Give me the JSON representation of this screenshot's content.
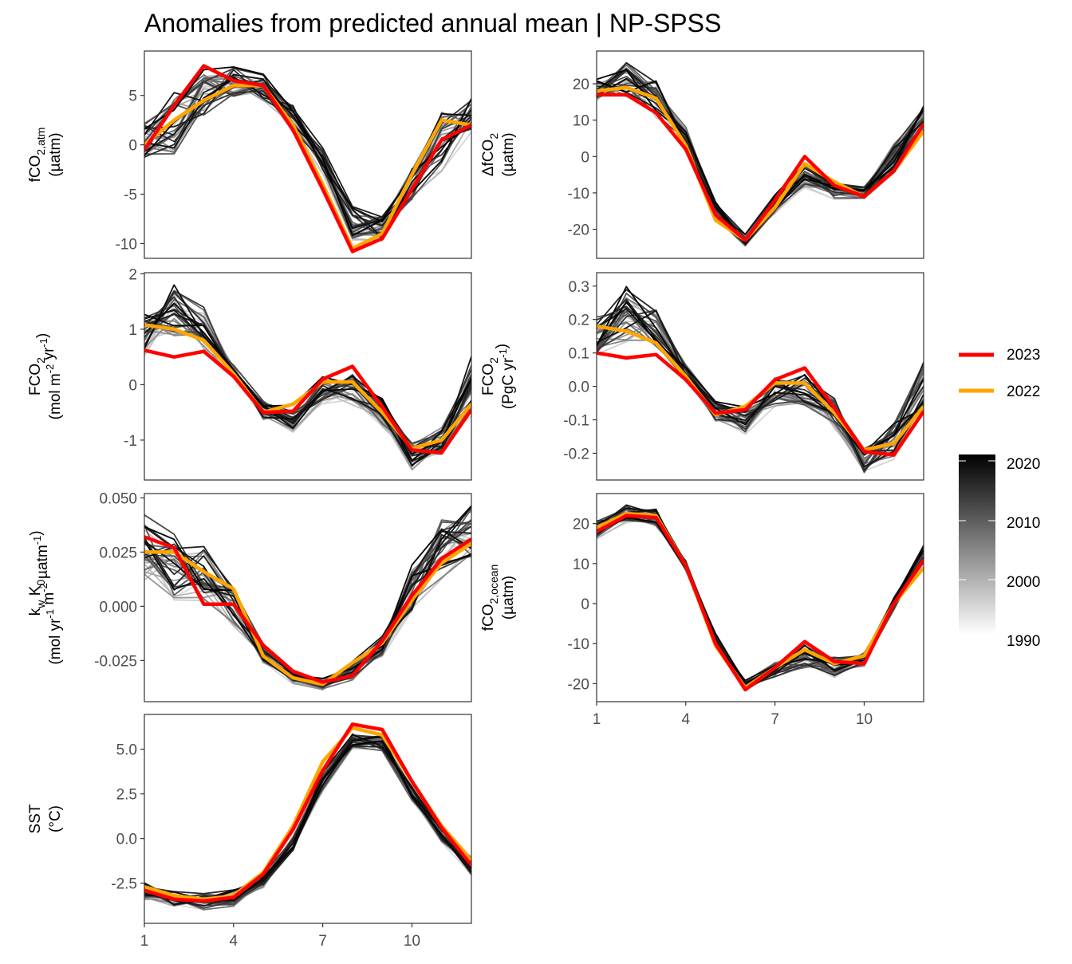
{
  "title": "Anomalies from predicted annual mean | NP-SPSS",
  "legend": {
    "series": [
      {
        "label": "2023",
        "color": "#ff0000"
      },
      {
        "label": "2022",
        "color": "#ffa500"
      }
    ],
    "colorbar": {
      "labels": [
        "2020",
        "2010",
        "2000",
        "1990"
      ],
      "from_color": "#ffffff",
      "to_color": "#000000"
    }
  },
  "chart_data": [
    {
      "type": "line",
      "panel": "fCO2,atm",
      "ylabel": {
        "main": "fCO",
        "sub": "2,atm",
        "line2": "(µatm)"
      },
      "ylim": [
        -11.5,
        9.5
      ],
      "yticks": [
        5,
        0,
        -5,
        -10
      ],
      "ytick_labels": [
        "5",
        "0",
        "-5",
        "-10"
      ],
      "x": [
        1,
        2,
        3,
        4,
        5,
        6,
        7,
        8,
        9,
        10,
        11,
        12
      ],
      "xlim": [
        1,
        12
      ],
      "years": {
        "start": 1990,
        "end": 2021
      },
      "background_envelope": {
        "low": [
          -2,
          -2,
          2,
          4,
          4,
          1,
          -3,
          -10,
          -10,
          -6,
          -3,
          1
        ],
        "high": [
          2.5,
          6,
          8,
          8.5,
          7.5,
          4.5,
          0,
          -6,
          -7,
          -2,
          4,
          5
        ]
      },
      "series": [
        {
          "name": "2023",
          "color": "#ff0000",
          "values": [
            -0.5,
            4,
            8,
            6.5,
            6,
            1.5,
            -4.5,
            -10.8,
            -9.5,
            -4.5,
            0.5,
            2
          ]
        },
        {
          "name": "2022",
          "color": "#ffa500",
          "values": [
            0,
            2.5,
            4.5,
            6,
            6,
            2,
            -4,
            -10.5,
            -9,
            -3,
            2.5,
            2
          ]
        }
      ]
    },
    {
      "type": "line",
      "panel": "ΔfCO2",
      "ylabel": {
        "main": "ΔfCO",
        "sub": "2",
        "line2": "(µatm)"
      },
      "ylim": [
        -28,
        29
      ],
      "yticks": [
        20,
        10,
        0,
        -10,
        -20
      ],
      "ytick_labels": [
        "20",
        "10",
        "0",
        "-10",
        "-20"
      ],
      "x": [
        1,
        2,
        3,
        4,
        5,
        6,
        7,
        8,
        9,
        10,
        11,
        12
      ],
      "xlim": [
        1,
        12
      ],
      "years": {
        "start": 1990,
        "end": 2021
      },
      "background_envelope": {
        "low": [
          15,
          15,
          10,
          1,
          -18,
          -25,
          -16,
          -9,
          -12,
          -12,
          -5,
          5
        ],
        "high": [
          22,
          27,
          22,
          9,
          -12,
          -21,
          -10,
          -1,
          -7,
          -8,
          5,
          16
        ]
      },
      "series": [
        {
          "name": "2023",
          "color": "#ff0000",
          "values": [
            17,
            17,
            12,
            2,
            -16,
            -23,
            -12,
            0,
            -8,
            -11,
            -4,
            9
          ]
        },
        {
          "name": "2022",
          "color": "#ffa500",
          "values": [
            18,
            19,
            16,
            3,
            -17.5,
            -23,
            -14,
            -2,
            -7,
            -11,
            -4,
            7
          ]
        }
      ]
    },
    {
      "type": "line",
      "panel": "FCO2",
      "ylabel": {
        "main": "FCO",
        "sub": "2",
        "line2": "(mol m-2 yr-1)"
      },
      "ylim": [
        -1.72,
        2.02
      ],
      "yticks": [
        2,
        1,
        0,
        -1
      ],
      "ytick_labels": [
        "2",
        "1",
        "0",
        "-1"
      ],
      "x": [
        1,
        2,
        3,
        4,
        5,
        6,
        7,
        8,
        9,
        10,
        11,
        12
      ],
      "xlim": [
        1,
        12
      ],
      "years": {
        "start": 1990,
        "end": 2021
      },
      "background_envelope": {
        "low": [
          0.5,
          0.8,
          0.6,
          0.1,
          -0.7,
          -0.9,
          -0.4,
          -0.4,
          -0.8,
          -1.6,
          -1.4,
          -0.6
        ],
        "high": [
          1.3,
          1.85,
          1.45,
          0.4,
          -0.25,
          -0.35,
          0.15,
          0.25,
          -0.2,
          -1.0,
          -0.6,
          0.55
        ]
      },
      "series": [
        {
          "name": "2023",
          "color": "#ff0000",
          "values": [
            0.62,
            0.5,
            0.6,
            0.15,
            -0.5,
            -0.48,
            0.1,
            0.33,
            -0.4,
            -1.18,
            -1.23,
            -0.45
          ]
        },
        {
          "name": "2022",
          "color": "#ffa500",
          "values": [
            1.08,
            1.0,
            0.8,
            0.2,
            -0.5,
            -0.35,
            0.05,
            0.05,
            -0.5,
            -1.15,
            -1.0,
            -0.35
          ]
        }
      ]
    },
    {
      "type": "line",
      "panel": "FCO2 (PgC)",
      "ylabel": {
        "main": "FCO",
        "sub": "2",
        "line2": "(PgC yr-1)"
      },
      "ylim": [
        -0.28,
        0.34
      ],
      "yticks": [
        0.3,
        0.2,
        0.1,
        0.0,
        -0.1,
        -0.2
      ],
      "ytick_labels": [
        "0.3",
        "0.2",
        "0.1",
        "0.0",
        "-0.1",
        "-0.2"
      ],
      "x": [
        1,
        2,
        3,
        4,
        5,
        6,
        7,
        8,
        9,
        10,
        11,
        12
      ],
      "xlim": [
        1,
        12
      ],
      "years": {
        "start": 1990,
        "end": 2021
      },
      "background_envelope": {
        "low": [
          0.08,
          0.12,
          0.1,
          0.01,
          -0.11,
          -0.15,
          -0.07,
          -0.07,
          -0.13,
          -0.27,
          -0.23,
          -0.1
        ],
        "high": [
          0.22,
          0.31,
          0.24,
          0.07,
          -0.04,
          -0.06,
          0.03,
          0.04,
          -0.03,
          -0.17,
          -0.1,
          0.09
        ]
      },
      "series": [
        {
          "name": "2023",
          "color": "#ff0000",
          "values": [
            0.1,
            0.085,
            0.095,
            0.02,
            -0.08,
            -0.07,
            0.02,
            0.055,
            -0.065,
            -0.195,
            -0.205,
            -0.075
          ]
        },
        {
          "name": "2022",
          "color": "#ffa500",
          "values": [
            0.18,
            0.165,
            0.13,
            0.03,
            -0.085,
            -0.06,
            0.01,
            0.01,
            -0.08,
            -0.19,
            -0.17,
            -0.06
          ]
        }
      ]
    },
    {
      "type": "line",
      "panel": "kw K0",
      "ylabel": {
        "main": "k_w K_0",
        "line2": "(mol yr-1 m-2 µatm-1)"
      },
      "ylim": [
        -0.044,
        0.052
      ],
      "yticks": [
        0.05,
        0.025,
        0.0,
        -0.025
      ],
      "ytick_labels": [
        "0.050",
        "0.025",
        "0.000",
        "-0.025"
      ],
      "x": [
        1,
        2,
        3,
        4,
        5,
        6,
        7,
        8,
        9,
        10,
        11,
        12
      ],
      "xlim": [
        1,
        12
      ],
      "years": {
        "start": 1990,
        "end": 2021
      },
      "background_envelope": {
        "low": [
          0.01,
          0.0,
          0.0,
          -0.01,
          -0.027,
          -0.036,
          -0.039,
          -0.035,
          -0.024,
          -0.006,
          0.01,
          0.018
        ],
        "high": [
          0.045,
          0.038,
          0.03,
          0.012,
          -0.016,
          -0.03,
          -0.032,
          -0.025,
          -0.013,
          0.02,
          0.043,
          0.048
        ]
      },
      "series": [
        {
          "name": "2023",
          "color": "#ff0000",
          "values": [
            0.032,
            0.027,
            0.001,
            0.001,
            -0.018,
            -0.03,
            -0.035,
            -0.032,
            -0.016,
            0.005,
            0.022,
            0.031
          ]
        },
        {
          "name": "2022",
          "color": "#ffa500",
          "values": [
            0.025,
            0.025,
            0.016,
            0.008,
            -0.023,
            -0.033,
            -0.036,
            -0.026,
            -0.017,
            0.003,
            0.02,
            0.029
          ]
        }
      ]
    },
    {
      "type": "line",
      "panel": "fCO2,ocean",
      "ylabel": {
        "main": "fCO",
        "sub": "2,ocean",
        "line2": "(µatm)"
      },
      "ylim": [
        -24.5,
        27.5
      ],
      "yticks": [
        20,
        10,
        0,
        -10,
        -20
      ],
      "ytick_labels": [
        "20",
        "10",
        "0",
        "-10",
        "-20"
      ],
      "x": [
        1,
        2,
        3,
        4,
        5,
        6,
        7,
        8,
        9,
        10,
        11,
        12
      ],
      "xlim": [
        1,
        12
      ],
      "xticks": [
        1,
        4,
        7,
        10
      ],
      "xtick_labels": [
        "1",
        "4",
        "7",
        "10"
      ],
      "years": {
        "start": 1990,
        "end": 2021
      },
      "background_envelope": {
        "low": [
          16,
          20,
          19,
          8,
          -11,
          -22,
          -19,
          -17,
          -19,
          -16,
          -2,
          9
        ],
        "high": [
          21,
          25,
          24,
          11,
          -7,
          -19,
          -14,
          -10,
          -13,
          -12,
          2,
          15
        ]
      },
      "series": [
        {
          "name": "2023",
          "color": "#ff0000",
          "values": [
            18,
            22,
            21.5,
            9.5,
            -10,
            -21.5,
            -16,
            -9.5,
            -14.5,
            -15,
            0,
            11
          ]
        },
        {
          "name": "2022",
          "color": "#ffa500",
          "values": [
            19,
            22.5,
            22,
            9.5,
            -10.5,
            -21,
            -16,
            -11.5,
            -15,
            -13,
            0,
            9
          ]
        }
      ]
    },
    {
      "type": "line",
      "panel": "SST",
      "ylabel": {
        "main": "SST",
        "line2": "(°C)"
      },
      "ylim": [
        -4.75,
        6.95
      ],
      "yticks": [
        5.0,
        2.5,
        0.0,
        -2.5
      ],
      "ytick_labels": [
        "5.0",
        "2.5",
        "0.0",
        "-2.5"
      ],
      "x": [
        1,
        2,
        3,
        4,
        5,
        6,
        7,
        8,
        9,
        10,
        11,
        12
      ],
      "xlim": [
        1,
        12
      ],
      "xticks": [
        1,
        4,
        7,
        10
      ],
      "xtick_labels": [
        "1",
        "4",
        "7",
        "10"
      ],
      "years": {
        "start": 1990,
        "end": 2021
      },
      "background_envelope": {
        "low": [
          -3.5,
          -3.9,
          -4.2,
          -3.9,
          -2.8,
          -0.8,
          2.5,
          5.0,
          4.8,
          2.0,
          -0.3,
          -2.2
        ],
        "high": [
          -2.4,
          -2.9,
          -3.0,
          -2.8,
          -1.9,
          0.2,
          3.8,
          6.0,
          5.8,
          3.0,
          0.6,
          -1.0
        ]
      },
      "series": [
        {
          "name": "2023",
          "color": "#ff0000",
          "values": [
            -2.9,
            -3.4,
            -3.5,
            -3.3,
            -2.0,
            0.5,
            3.8,
            6.4,
            6.1,
            3.2,
            0.6,
            -1.5
          ]
        },
        {
          "name": "2022",
          "color": "#ffa500",
          "values": [
            -2.7,
            -3.2,
            -3.4,
            -3.2,
            -1.9,
            0.7,
            4.3,
            6.2,
            5.8,
            3.2,
            0.7,
            -1.2
          ]
        }
      ]
    }
  ]
}
